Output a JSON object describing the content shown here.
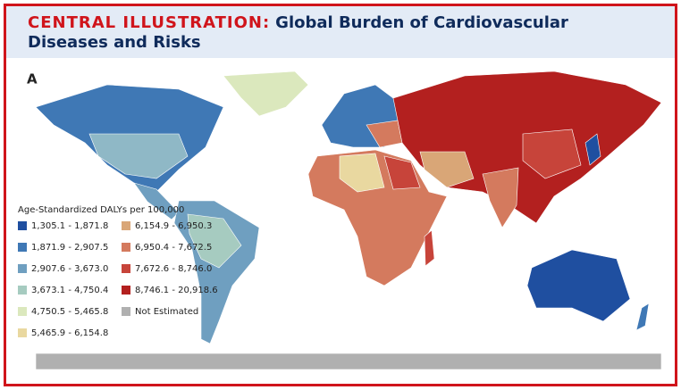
{
  "header": {
    "title_prefix": "CENTRAL ILLUSTRATION:",
    "title": "Global Burden of Cardiovascular Diseases and Risks"
  },
  "panel_label": "A",
  "legend": {
    "title": "Age-Standardized DALYs per 100,000",
    "items": [
      {
        "label": "1,305.1 - 1,871.8",
        "color": "#1f4fa0"
      },
      {
        "label": "1,871.9 - 2,907.5",
        "color": "#3f78b5"
      },
      {
        "label": "2,907.6 - 3,673.0",
        "color": "#6f9fc0"
      },
      {
        "label": "3,673.1 - 4,750.4",
        "color": "#a6cbc0"
      },
      {
        "label": "4,750.5 - 5,465.8",
        "color": "#dbe8bd"
      },
      {
        "label": "5,465.9 - 6,154.8",
        "color": "#e9d8a0"
      },
      {
        "label": "6,154.9 - 6,950.3",
        "color": "#d9a677"
      },
      {
        "label": "6,950.4 - 7,672.5",
        "color": "#d47a5e"
      },
      {
        "label": "7,672.6 - 8,746.0",
        "color": "#c7443a"
      },
      {
        "label": "8,746.1 - 20,918.6",
        "color": "#b3201f"
      },
      {
        "label": "Not Estimated",
        "color": "#b0b0b0"
      }
    ]
  }
}
